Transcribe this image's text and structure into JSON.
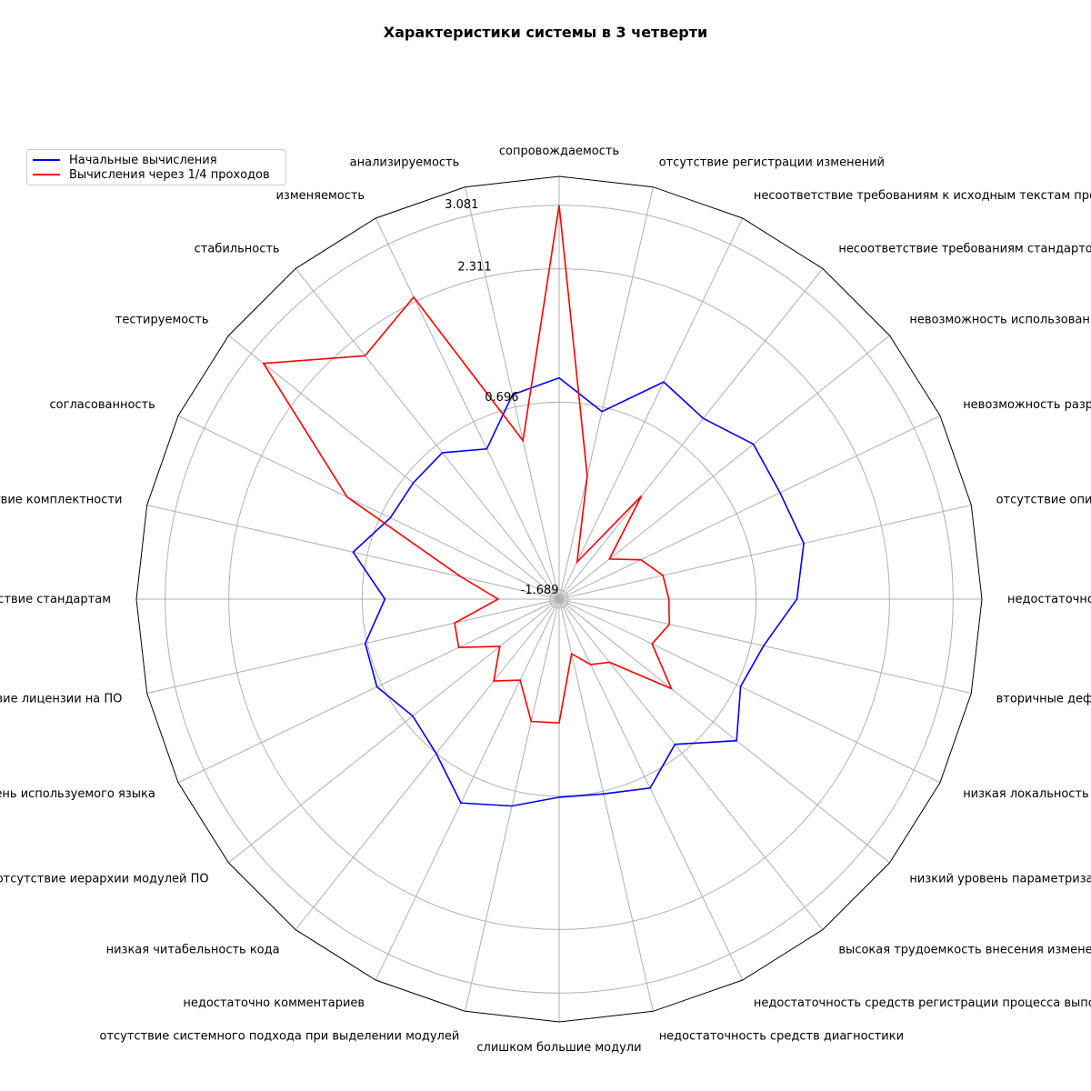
{
  "chart_data": {
    "type": "radar",
    "title": "Характеристики системы в 3 четверти",
    "categories": [
      "сопровождаемость",
      "отсутствие регистрации изменений",
      "несоответствие требованиям к исходным текстам программ",
      "несоответствие требованиям стандартов сопровождаемости",
      "невозможность использования средств тестирования",
      "невозможность разработки теста для выполнения т",
      "отсутствие описания методов испыта",
      "недостаточность требований к тестир",
      "вторичные дефекты после модифик",
      "низкая локальность модификации",
      "низкий уровень параметризации",
      "высокая трудоемкость внесения изменений",
      "недостаточность средств регистрации процесса выполнения",
      "недостаточность средств диагностики",
      "слишком большие модули",
      "отсутствие системного подхода при выделении модулей",
      "недостаточно комментариев",
      "низкая читабельность кода",
      "отсутствие иерархии модулей ПО",
      "невысокий уровень используемого языка",
      "отсутствие лицензии на ПО",
      "несоответствие стандартам",
      "несоответствие комплектности",
      "согласованность",
      "тестируемость",
      "стабильность",
      "изменяемость",
      "анализируемость"
    ],
    "rlim": [
      -1.689,
      3.43
    ],
    "rticks": [
      "-1.689",
      "0.696",
      "2.311",
      "3.081"
    ],
    "rtick_values": [
      -1.689,
      0.696,
      2.311,
      3.081
    ],
    "grid": true,
    "legend_position": "upper-left",
    "series": [
      {
        "name": "Начальные вычисления",
        "color": "#0000ff",
        "values": [
          0.99,
          0.64,
          1.23,
          1.11,
          1.32,
          1.28,
          1.35,
          1.19,
          0.85,
          0.75,
          1.06,
          0.56,
          0.85,
          0.73,
          0.71,
          0.88,
          1.05,
          0.7,
          0.58,
          0.76,
          0.72,
          0.42,
          0.87,
          0.58,
          0.57,
          0.58,
          0.33,
          0.85
        ]
      },
      {
        "name": "Вычисления через 1/4 проходов",
        "color": "#ff0000",
        "values": [
          3.08,
          -0.16,
          -1.19,
          -0.09,
          -0.91,
          -0.59,
          -0.4,
          -0.36,
          -0.32,
          -0.44,
          0.05,
          -0.71,
          -0.81,
          -1.01,
          -0.19,
          -0.17,
          -0.6,
          -0.42,
          -0.77,
          -0.34,
          -0.39,
          -0.95,
          -0.47,
          1.16,
          2.89,
          2.08,
          2.37,
          0.28
        ]
      }
    ]
  }
}
